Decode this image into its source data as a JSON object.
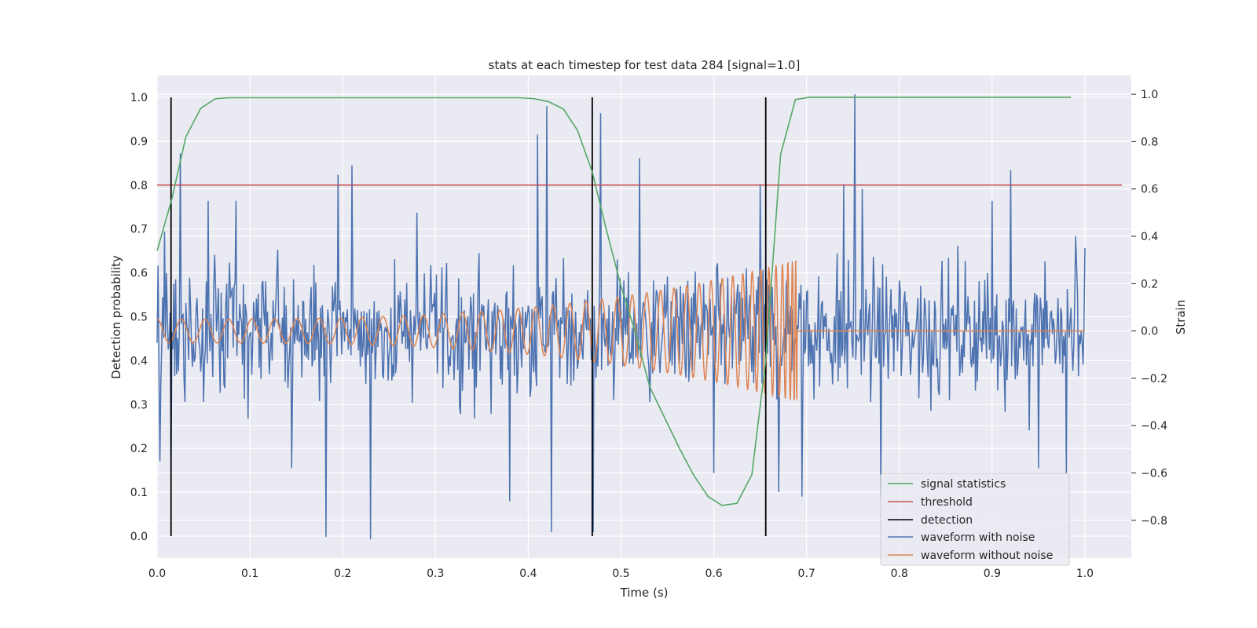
{
  "chart_data": {
    "type": "line",
    "title": "stats at each timestep for test data 284 [signal=1.0]",
    "xlabel": "Time (s)",
    "ylabel": "Detection probability",
    "y2label": "Strain",
    "xlim": [
      0.0,
      1.05
    ],
    "ylim": [
      -0.05,
      1.05
    ],
    "y2lim": [
      -0.96,
      1.08
    ],
    "xticks": [
      "0.0",
      "0.1",
      "0.2",
      "0.3",
      "0.4",
      "0.5",
      "0.6",
      "0.7",
      "0.8",
      "0.9",
      "1.0"
    ],
    "yticks": [
      "0.0",
      "0.1",
      "0.2",
      "0.3",
      "0.4",
      "0.5",
      "0.6",
      "0.7",
      "0.8",
      "0.9",
      "1.0"
    ],
    "y2ticks": [
      "−0.8",
      "−0.6",
      "−0.4",
      "−0.2",
      "0.0",
      "0.2",
      "0.4",
      "0.6",
      "0.8",
      "1.0"
    ],
    "grid": true,
    "legend_position": "lower-right",
    "colors": {
      "signal_statistics": "#55a868",
      "threshold": "#c44e52",
      "detection": "#000000",
      "waveform_with_noise": "#4c72b0",
      "waveform_without_noise": "#dd8452",
      "plot_background": "#eaeaf2",
      "grid": "#ffffff"
    },
    "series": [
      {
        "name": "signal statistics",
        "axis": "left",
        "x": [
          0.0,
          0.016,
          0.031,
          0.047,
          0.063,
          0.078,
          0.1,
          0.2,
          0.3,
          0.39,
          0.406,
          0.422,
          0.438,
          0.453,
          0.469,
          0.484,
          0.5,
          0.516,
          0.531,
          0.547,
          0.563,
          0.578,
          0.594,
          0.609,
          0.625,
          0.641,
          0.656,
          0.672,
          0.688,
          0.703,
          0.8,
          0.9,
          0.985
        ],
        "y": [
          0.65,
          0.77,
          0.91,
          0.975,
          0.997,
          0.999,
          0.999,
          0.999,
          0.999,
          0.999,
          0.997,
          0.99,
          0.973,
          0.925,
          0.83,
          0.7,
          0.57,
          0.46,
          0.34,
          0.27,
          0.2,
          0.14,
          0.09,
          0.07,
          0.075,
          0.14,
          0.4,
          0.87,
          0.995,
          1.0,
          1.0,
          1.0,
          1.0
        ]
      },
      {
        "name": "threshold",
        "axis": "left",
        "x": [
          0.0,
          1.04
        ],
        "y": [
          0.8,
          0.8
        ]
      },
      {
        "name": "detection",
        "axis": "left",
        "x": [
          0.015,
          0.469,
          0.656
        ],
        "y_range": [
          0.0,
          1.0
        ]
      },
      {
        "name": "waveform with noise",
        "axis": "right",
        "x_range": [
          0.0,
          1.0
        ],
        "y_at_x": [
          [
            0.0,
            -0.05
          ],
          [
            0.003,
            -0.55
          ],
          [
            0.008,
            0.42
          ],
          [
            0.015,
            -0.6
          ],
          [
            0.018,
            0.2
          ],
          [
            0.025,
            0.75
          ],
          [
            0.03,
            -0.3
          ],
          [
            0.055,
            0.55
          ],
          [
            0.085,
            0.55
          ],
          [
            0.145,
            -0.58
          ],
          [
            0.182,
            -0.87
          ],
          [
            0.195,
            0.66
          ],
          [
            0.21,
            0.7
          ],
          [
            0.23,
            -0.88
          ],
          [
            0.28,
            0.5
          ],
          [
            0.36,
            -0.35
          ],
          [
            0.38,
            -0.72
          ],
          [
            0.41,
            0.83
          ],
          [
            0.42,
            0.95
          ],
          [
            0.425,
            -0.85
          ],
          [
            0.47,
            -0.85
          ],
          [
            0.478,
            0.92
          ],
          [
            0.52,
            0.73
          ],
          [
            0.6,
            -0.6
          ],
          [
            0.65,
            0.62
          ],
          [
            0.67,
            -0.68
          ],
          [
            0.695,
            -0.7
          ],
          [
            0.74,
            0.62
          ],
          [
            0.752,
            1.0
          ],
          [
            0.76,
            0.6
          ],
          [
            0.78,
            -0.7
          ],
          [
            0.9,
            0.55
          ],
          [
            0.92,
            0.68
          ],
          [
            0.94,
            -0.42
          ],
          [
            0.95,
            -0.58
          ],
          [
            0.98,
            -0.6
          ],
          [
            0.99,
            0.4
          ],
          [
            1.0,
            0.35
          ]
        ]
      },
      {
        "name": "waveform without noise",
        "axis": "right",
        "x_range": [
          0.0,
          1.0
        ],
        "chirp_end": 0.69,
        "amplitude_start": 0.05,
        "amplitude_end": 0.3,
        "cycles_before_end": 42
      }
    ],
    "legend": [
      "signal statistics",
      "threshold",
      "detection",
      "waveform with noise",
      "waveform without noise"
    ]
  }
}
